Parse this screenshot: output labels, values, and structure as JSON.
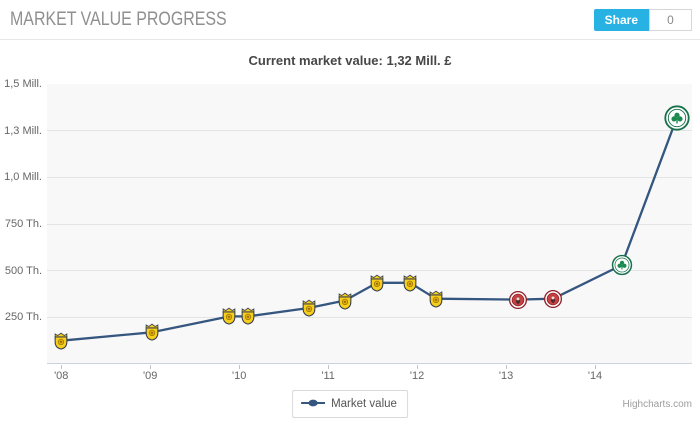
{
  "header": {
    "title": "MARKET VALUE PROGRESS",
    "share": {
      "label": "Share",
      "count": "0"
    }
  },
  "chart": {
    "title": "Current market value: 1,32 Mill. £",
    "legend_label": "Market value",
    "credit": "Highcharts.com"
  },
  "colors": {
    "line": "#35567e",
    "share_button": "#28b2e3",
    "plot_background": "#f8f8f8",
    "gridline": "#e4e4e4",
    "axis_line": "#c8d4e2",
    "crest_yellow": "#f7cf1b",
    "crest_red": "#c94040",
    "crest_green": "#1c8a50"
  },
  "chart_data": {
    "type": "line",
    "title": "Current market value: 1,32 Mill. £",
    "legend": [
      "Market value"
    ],
    "legend_position": "bottom-center",
    "grid": true,
    "y_unit": "Th. £",
    "ylim": [
      0,
      1500
    ],
    "xlim": [
      2007.84,
      2015.09
    ],
    "y_ticks": [
      {
        "value": 250,
        "label": "250 Th."
      },
      {
        "value": 500,
        "label": "500 Th."
      },
      {
        "value": 750,
        "label": "750 Th."
      },
      {
        "value": 1000,
        "label": "1,0 Mill."
      },
      {
        "value": 1250,
        "label": "1,3 Mill."
      },
      {
        "value": 1500,
        "label": "1,5 Mill."
      }
    ],
    "x_ticks": [
      {
        "value": 2008,
        "label": "'08"
      },
      {
        "value": 2009,
        "label": "'09"
      },
      {
        "value": 2010,
        "label": "'10"
      },
      {
        "value": 2011,
        "label": "'11"
      },
      {
        "value": 2012,
        "label": "'12"
      },
      {
        "value": 2013,
        "label": "'13"
      },
      {
        "value": 2014,
        "label": "'14"
      }
    ],
    "series": [
      {
        "name": "Market value",
        "points": [
          {
            "x": 2008.0,
            "value": 125,
            "club": "yellow-shield-crest",
            "size": 18
          },
          {
            "x": 2009.02,
            "value": 170,
            "club": "yellow-shield-crest",
            "size": 18
          },
          {
            "x": 2009.89,
            "value": 255,
            "club": "yellow-shield-crest",
            "size": 18
          },
          {
            "x": 2010.1,
            "value": 255,
            "club": "yellow-shield-crest",
            "size": 18
          },
          {
            "x": 2010.78,
            "value": 300,
            "club": "yellow-shield-crest",
            "size": 18
          },
          {
            "x": 2011.19,
            "value": 340,
            "club": "yellow-shield-crest",
            "size": 18
          },
          {
            "x": 2011.55,
            "value": 435,
            "club": "yellow-shield-crest",
            "size": 18
          },
          {
            "x": 2011.92,
            "value": 435,
            "club": "yellow-shield-crest",
            "size": 18
          },
          {
            "x": 2012.21,
            "value": 350,
            "club": "yellow-shield-crest",
            "size": 18
          },
          {
            "x": 2013.13,
            "value": 345,
            "club": "red-round-crest",
            "size": 19
          },
          {
            "x": 2013.53,
            "value": 350,
            "club": "red-round-crest",
            "size": 19
          },
          {
            "x": 2014.3,
            "value": 530,
            "club": "green-shamrock-crest",
            "size": 21
          },
          {
            "x": 2014.92,
            "value": 1320,
            "club": "green-shamrock-crest",
            "size": 26
          }
        ]
      }
    ]
  }
}
